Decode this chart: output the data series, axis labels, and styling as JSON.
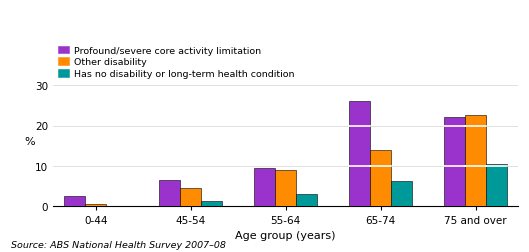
{
  "categories": [
    "0-44",
    "45-54",
    "55-64",
    "65-74",
    "75 and over"
  ],
  "series": {
    "Profound/severe core activity limitation": [
      2.5,
      6.5,
      9.5,
      26.0,
      22.0
    ],
    "Other disability": [
      0.7,
      4.5,
      9.0,
      14.0,
      22.5
    ],
    "Has no disability or long-term health condition": [
      0.0,
      1.3,
      3.2,
      6.2,
      10.5
    ]
  },
  "colors": {
    "Profound/severe core activity limitation": "#9933CC",
    "Other disability": "#FF8C00",
    "Has no disability or long-term health condition": "#009999"
  },
  "ylabel": "%",
  "xlabel": "Age group (years)",
  "ylim": [
    0,
    30
  ],
  "yticks": [
    0,
    10,
    20,
    30
  ],
  "source": "Source: ABS National Health Survey 2007–08",
  "bar_width": 0.22,
  "background_color": "#ffffff"
}
